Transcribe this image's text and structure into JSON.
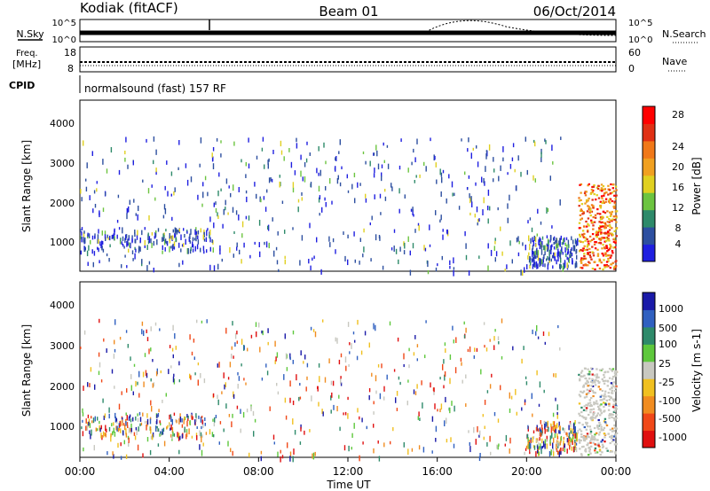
{
  "header": {
    "station": "Kodiak (fitACF)",
    "beam": "Beam 01",
    "date": "06/Oct/2014"
  },
  "noise_panel": {
    "left_label": "N.Sky",
    "right_label": "N.Search",
    "left_ticks": [
      "10^5",
      "10^0"
    ],
    "right_ticks": [
      "10^5",
      "10^0"
    ]
  },
  "freq_panel": {
    "left_label_1": "Freq.",
    "left_label_2": "[MHz]",
    "left_ticks": [
      "18",
      "8"
    ],
    "right_ticks": [
      "60",
      "0"
    ],
    "right_label": "Nave"
  },
  "cpid_panel": {
    "label": "CPID",
    "value": "normalsound (fast) 157 RF"
  },
  "x_axis": {
    "label": "Time UT",
    "ticks": [
      "00:00",
      "04:00",
      "08:00",
      "12:00",
      "16:00",
      "20:00",
      "00:00"
    ]
  },
  "y_axis": {
    "label": "Slant Range [km]",
    "ticks": [
      "1000",
      "2000",
      "3000",
      "4000"
    ]
  },
  "power_bar": {
    "title": "Power [dB]",
    "ticks": [
      "4",
      "8",
      "12",
      "16",
      "20",
      "24",
      "28"
    ],
    "colors": [
      "#1f1fe0",
      "#2d4fa0",
      "#2e8a6a",
      "#6cc440",
      "#e0d020",
      "#f0a020",
      "#f07818",
      "#e03014",
      "#ff0000"
    ]
  },
  "velocity_bar": {
    "title": "Velocity [m s-1]",
    "ticks": [
      "1000",
      "500",
      "100",
      "25",
      "-25",
      "-100",
      "-500",
      "-1000"
    ],
    "colors": [
      "#1a1aa8",
      "#3060c0",
      "#2e8a6a",
      "#5ec83c",
      "#c8c8c0",
      "#f0c020",
      "#f08c20",
      "#f04818",
      "#e01010"
    ]
  },
  "chart_data": {
    "type": "heatmap",
    "panels": [
      "Power [dB]",
      "Velocity [m s-1]"
    ],
    "x_range_hours": [
      0,
      24
    ],
    "y_range_km": [
      180,
      4500
    ],
    "scatter_bands": [
      {
        "name": "near-range ionospheric",
        "t_start": 0.0,
        "t_end": 6.0,
        "range_km": [
          700,
          1300
        ]
      },
      {
        "name": "sparse scatter",
        "t_start": 0.0,
        "t_end": 21.5,
        "range_km": [
          200,
          3600
        ]
      },
      {
        "name": "late enhanced scatter",
        "t_start": 22.3,
        "t_end": 24.0,
        "range_km": [
          250,
          2400
        ]
      },
      {
        "name": "ground scatter (near)",
        "t_start": 20.0,
        "t_end": 22.3,
        "range_km": [
          300,
          1100
        ]
      }
    ]
  }
}
